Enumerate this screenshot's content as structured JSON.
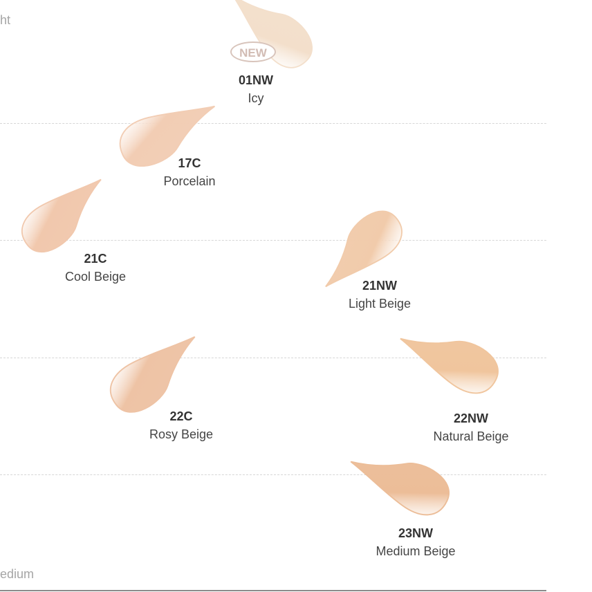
{
  "axis": {
    "top_label": "ht",
    "bottom_label": "edium"
  },
  "badge": "NEW",
  "shades": [
    {
      "code": "01NW",
      "name": "Icy",
      "color": "#f3dfcb",
      "new": true
    },
    {
      "code": "17C",
      "name": "Porcelain",
      "color": "#f2cdb4"
    },
    {
      "code": "21C",
      "name": "Cool Beige",
      "color": "#f1c8ad"
    },
    {
      "code": "21NW",
      "name": "Light Beige",
      "color": "#f1cbab"
    },
    {
      "code": "22C",
      "name": "Rosy Beige",
      "color": "#eec3a5"
    },
    {
      "code": "22NW",
      "name": "Natural Beige",
      "color": "#f0c59d"
    },
    {
      "code": "23NW",
      "name": "Medium Beige",
      "color": "#ecbd98"
    }
  ]
}
